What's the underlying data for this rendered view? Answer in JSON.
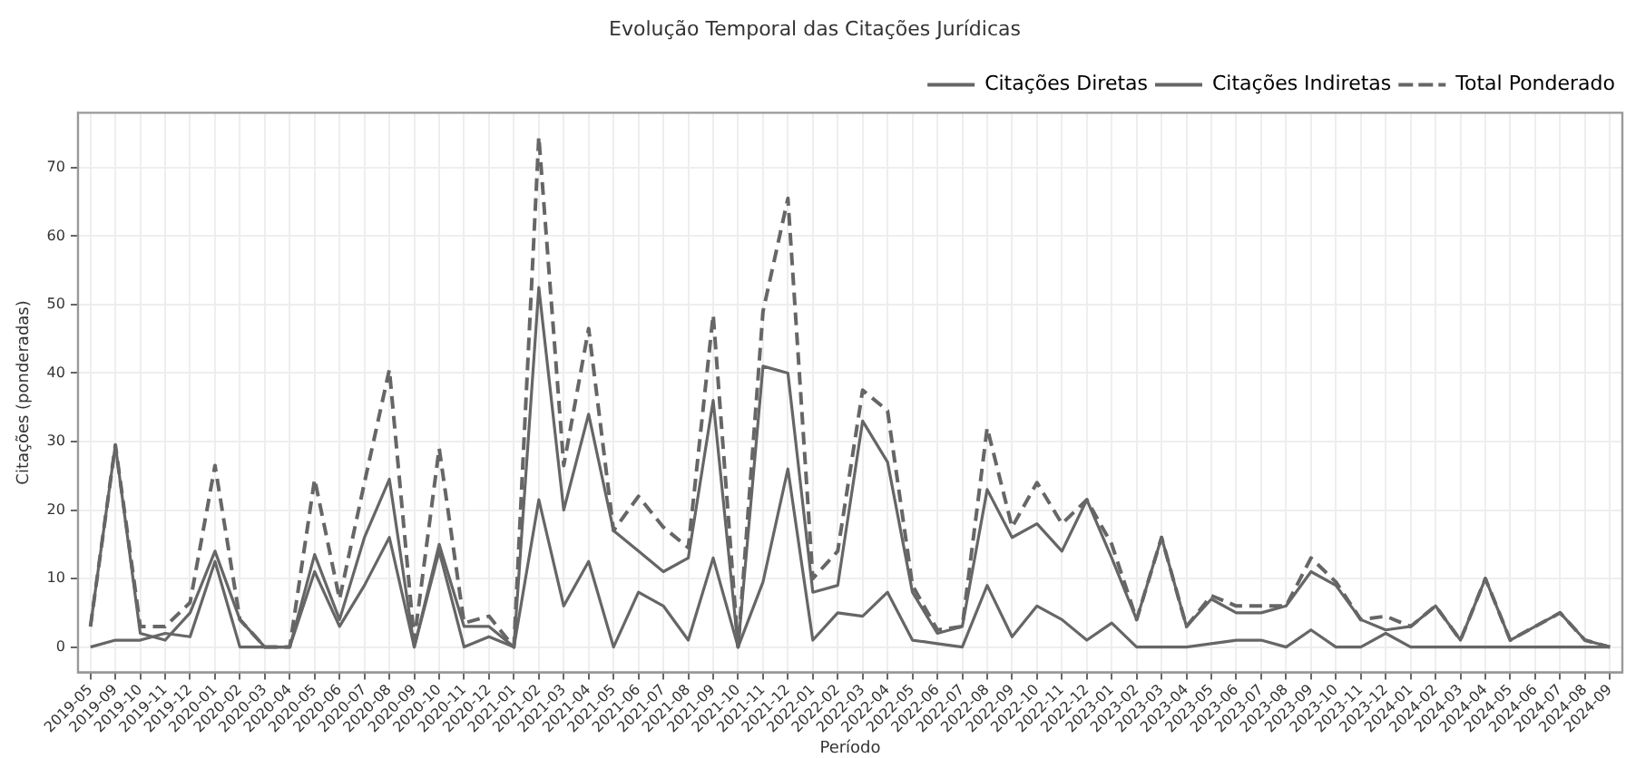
{
  "chart_data": {
    "type": "line",
    "title": "Evolução Temporal das Citações Jurídicas",
    "xlabel": "Período",
    "ylabel": "Citações (ponderadas)",
    "categories": [
      "2019-05",
      "2019-09",
      "2019-10",
      "2019-11",
      "2019-12",
      "2020-01",
      "2020-02",
      "2020-03",
      "2020-04",
      "2020-05",
      "2020-06",
      "2020-07",
      "2020-08",
      "2020-09",
      "2020-10",
      "2020-11",
      "2020-12",
      "2021-01",
      "2021-02",
      "2021-03",
      "2021-04",
      "2021-05",
      "2021-06",
      "2021-07",
      "2021-08",
      "2021-09",
      "2021-10",
      "2021-11",
      "2021-12",
      "2022-01",
      "2022-02",
      "2022-03",
      "2022-04",
      "2022-05",
      "2022-06",
      "2022-07",
      "2022-08",
      "2022-09",
      "2022-10",
      "2022-11",
      "2022-12",
      "2023-01",
      "2023-02",
      "2023-03",
      "2023-04",
      "2023-05",
      "2023-06",
      "2023-07",
      "2023-08",
      "2023-09",
      "2023-10",
      "2023-11",
      "2023-12",
      "2024-01",
      "2024-02",
      "2024-03",
      "2024-04",
      "2024-05",
      "2024-06",
      "2024-07",
      "2024-08",
      "2024-09"
    ],
    "series": [
      {
        "name": "Citações Diretas",
        "color": "#666666",
        "line_style": "solid",
        "values": [
          3,
          29.5,
          2,
          1,
          5,
          14,
          4,
          0,
          0,
          13.5,
          4,
          16,
          24.5,
          0,
          15,
          3,
          3,
          0,
          52.5,
          20,
          34,
          17,
          14,
          11,
          13,
          36,
          0,
          41,
          40,
          8,
          9,
          33,
          27,
          8,
          2,
          3,
          23,
          16,
          18,
          14,
          21.5,
          13,
          4,
          16,
          3,
          7,
          5,
          5,
          6,
          11,
          9,
          4,
          2.5,
          3,
          6,
          1,
          10,
          1,
          3,
          5,
          1,
          0
        ]
      },
      {
        "name": "Citações Indiretas",
        "color": "#666666",
        "line_style": "solid",
        "values": [
          0,
          1,
          1,
          2,
          1.5,
          12.5,
          0,
          0,
          0,
          11,
          3,
          9,
          16,
          0,
          14,
          0,
          1.5,
          0,
          21.5,
          6,
          12.5,
          0,
          8,
          6,
          1,
          13,
          0,
          9.5,
          26,
          1,
          5,
          4.5,
          8,
          1,
          0.5,
          0,
          9,
          1.5,
          6,
          4,
          1,
          3.5,
          0,
          0,
          0,
          0.5,
          1,
          1,
          0,
          2.5,
          0,
          0,
          2,
          0,
          0,
          0,
          0,
          0,
          0,
          0,
          0,
          0
        ]
      },
      {
        "name": "Total Ponderado",
        "color": "#666666",
        "line_style": "dashed",
        "values": [
          3,
          29.5,
          3,
          3,
          6.5,
          26.5,
          4,
          0,
          0,
          24.5,
          7,
          24,
          40.5,
          1,
          29,
          3.5,
          4.5,
          0,
          74.5,
          26.5,
          46.5,
          17,
          22,
          17.5,
          14.5,
          48.5,
          0,
          49,
          65.5,
          10,
          14,
          37.5,
          34.5,
          9,
          2.5,
          3,
          32,
          17.5,
          24,
          18,
          21.5,
          15,
          4,
          16,
          3,
          7.5,
          6,
          6,
          6,
          13,
          9.5,
          4,
          4.5,
          3,
          6,
          1,
          10,
          1,
          3,
          5,
          1,
          0
        ]
      }
    ],
    "ylim": [
      -3.7,
      78
    ],
    "yticks": [
      0,
      10,
      20,
      30,
      40,
      50,
      60,
      70
    ],
    "grid": true,
    "legend": "top right"
  }
}
